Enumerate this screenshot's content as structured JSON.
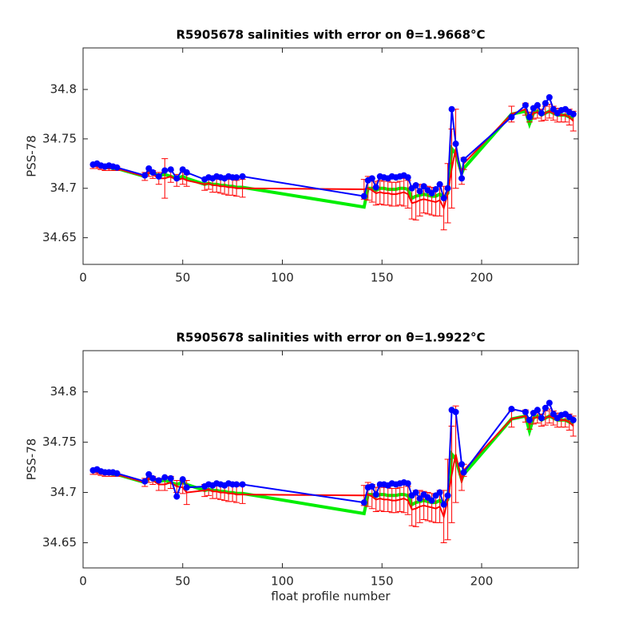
{
  "chart_data": [
    {
      "type": "errorbar",
      "title": "R5905678 salinities with error on θ=1.9668°C",
      "ylabel": "PSS-78",
      "x": [
        5,
        7,
        9,
        11,
        13,
        15,
        17,
        31,
        33,
        35,
        38,
        41,
        44,
        47,
        50,
        52,
        61,
        63,
        65,
        67,
        69,
        71,
        73,
        75,
        77,
        80,
        141,
        143,
        145,
        147,
        149,
        151,
        153,
        155,
        157,
        159,
        161,
        163,
        165,
        167,
        169,
        171,
        173,
        175,
        177,
        179,
        181,
        183,
        185,
        187,
        190,
        191,
        215,
        222,
        224,
        226,
        228,
        230,
        232,
        234,
        236,
        238,
        240,
        242,
        244,
        246
      ],
      "xlim": [
        0,
        248.5
      ],
      "xticks": [
        0,
        50,
        100,
        150,
        200
      ],
      "ylim": [
        34.623,
        34.842
      ],
      "yticks": [
        34.65,
        34.7,
        34.75,
        34.8
      ],
      "series": [
        {
          "color": "#00ee00",
          "values": [
            34.725,
            34.724,
            34.723,
            34.722,
            34.721,
            34.72,
            34.72,
            34.712,
            34.716,
            34.715,
            34.713,
            34.714,
            34.712,
            34.71,
            34.712,
            34.71,
            34.704,
            34.705,
            34.704,
            34.704,
            34.703,
            34.703,
            34.702,
            34.702,
            34.701,
            34.701,
            34.681,
            34.7,
            34.7,
            34.698,
            34.7,
            34.7,
            34.699,
            34.699,
            34.699,
            34.7,
            34.7,
            34.699,
            34.69,
            34.692,
            34.693,
            34.694,
            34.693,
            34.692,
            34.692,
            34.694,
            34.69,
            34.695,
            34.74,
            34.735,
            34.715,
            34.72,
            34.775,
            34.778,
            34.765,
            34.776,
            34.778,
            34.774,
            34.776,
            34.778,
            34.776,
            34.774,
            34.774,
            34.774,
            34.772,
            34.77
          ]
        },
        {
          "color": "#ff0000",
          "values": [
            34.722,
            34.722,
            34.721,
            34.72,
            34.72,
            34.72,
            34.72,
            34.712,
            34.716,
            34.714,
            34.71,
            34.71,
            34.712,
            34.708,
            34.71,
            34.708,
            34.704,
            34.705,
            34.703,
            34.703,
            34.702,
            34.702,
            34.701,
            34.701,
            34.7,
            34.7,
            34.699,
            34.7,
            34.698,
            34.695,
            34.696,
            34.695,
            34.695,
            34.694,
            34.694,
            34.695,
            34.696,
            34.694,
            34.685,
            34.686,
            34.688,
            34.689,
            34.688,
            34.687,
            34.686,
            34.688,
            34.68,
            34.695,
            34.72,
            34.74,
            34.712,
            34.725,
            34.775,
            34.78,
            34.772,
            34.776,
            34.777,
            34.774,
            34.776,
            34.778,
            34.776,
            34.774,
            34.774,
            34.774,
            34.772,
            34.768
          ],
          "errors": [
            0.002,
            0.002,
            0.002,
            0.002,
            0.002,
            0.002,
            0.002,
            0.004,
            0.004,
            0.004,
            0.006,
            0.02,
            0.006,
            0.006,
            0.006,
            0.006,
            0.006,
            0.006,
            0.007,
            0.007,
            0.007,
            0.008,
            0.008,
            0.008,
            0.008,
            0.009,
            0.01,
            0.012,
            0.012,
            0.012,
            0.012,
            0.012,
            0.012,
            0.012,
            0.012,
            0.012,
            0.014,
            0.014,
            0.016,
            0.018,
            0.016,
            0.014,
            0.014,
            0.014,
            0.014,
            0.016,
            0.022,
            0.03,
            0.04,
            0.04,
            0.008,
            0.006,
            0.008,
            0.006,
            0.005,
            0.006,
            0.006,
            0.006,
            0.007,
            0.007,
            0.007,
            0.007,
            0.007,
            0.007,
            0.008,
            0.01
          ]
        },
        {
          "color": "#0000ff",
          "values": [
            34.724,
            34.725,
            34.723,
            34.722,
            34.723,
            34.722,
            34.721,
            34.713,
            34.72,
            34.716,
            34.712,
            34.718,
            34.719,
            34.71,
            34.719,
            34.716,
            34.709,
            34.711,
            34.71,
            34.712,
            34.711,
            34.71,
            34.712,
            34.711,
            34.711,
            34.712,
            34.692,
            34.708,
            34.71,
            34.701,
            34.712,
            34.711,
            34.71,
            34.712,
            34.711,
            34.712,
            34.713,
            34.711,
            34.7,
            34.703,
            34.697,
            34.702,
            34.698,
            34.695,
            34.699,
            34.704,
            34.69,
            34.7,
            34.78,
            34.745,
            34.71,
            34.729,
            34.772,
            34.784,
            34.772,
            34.781,
            34.784,
            34.776,
            34.786,
            34.792,
            34.78,
            34.776,
            34.779,
            34.78,
            34.777,
            34.775
          ]
        }
      ]
    },
    {
      "type": "errorbar",
      "title": "R5905678 salinities with error on θ=1.9922°C",
      "ylabel": "PSS-78",
      "xlabel": "float profile number",
      "x": [
        5,
        7,
        9,
        11,
        13,
        15,
        17,
        31,
        33,
        35,
        38,
        41,
        44,
        47,
        50,
        52,
        61,
        63,
        65,
        67,
        69,
        71,
        73,
        75,
        77,
        80,
        141,
        143,
        145,
        147,
        149,
        151,
        153,
        155,
        157,
        159,
        161,
        163,
        165,
        167,
        169,
        171,
        173,
        175,
        177,
        179,
        181,
        183,
        185,
        187,
        190,
        191,
        215,
        222,
        224,
        226,
        228,
        230,
        232,
        234,
        236,
        238,
        240,
        242,
        244,
        246
      ],
      "xlim": [
        0,
        248.5
      ],
      "xticks": [
        0,
        50,
        100,
        150,
        200
      ],
      "ylim": [
        34.625,
        34.841
      ],
      "yticks": [
        34.65,
        34.7,
        34.75,
        34.8
      ],
      "series": [
        {
          "color": "#00ee00",
          "values": [
            34.723,
            34.722,
            34.721,
            34.72,
            34.719,
            34.718,
            34.718,
            34.71,
            34.714,
            34.713,
            34.711,
            34.712,
            34.71,
            34.708,
            34.71,
            34.708,
            34.702,
            34.703,
            34.702,
            34.702,
            34.701,
            34.701,
            34.7,
            34.7,
            34.699,
            34.699,
            34.679,
            34.698,
            34.698,
            34.696,
            34.698,
            34.698,
            34.697,
            34.697,
            34.697,
            34.698,
            34.698,
            34.697,
            34.688,
            34.69,
            34.691,
            34.692,
            34.691,
            34.69,
            34.69,
            34.692,
            34.688,
            34.693,
            34.738,
            34.733,
            34.713,
            34.718,
            34.773,
            34.776,
            34.761,
            34.774,
            34.776,
            34.772,
            34.774,
            34.776,
            34.774,
            34.772,
            34.772,
            34.772,
            34.77,
            34.768
          ]
        },
        {
          "color": "#ff0000",
          "values": [
            34.72,
            34.72,
            34.719,
            34.718,
            34.718,
            34.718,
            34.718,
            34.71,
            34.714,
            34.712,
            34.708,
            34.708,
            34.71,
            34.706,
            34.705,
            34.7,
            34.702,
            34.703,
            34.701,
            34.701,
            34.7,
            34.7,
            34.699,
            34.699,
            34.698,
            34.698,
            34.697,
            34.698,
            34.696,
            34.693,
            34.694,
            34.693,
            34.693,
            34.692,
            34.692,
            34.693,
            34.694,
            34.692,
            34.683,
            34.684,
            34.686,
            34.687,
            34.686,
            34.685,
            34.684,
            34.686,
            34.676,
            34.693,
            34.718,
            34.738,
            34.71,
            34.722,
            34.773,
            34.776,
            34.768,
            34.774,
            34.775,
            34.772,
            34.774,
            34.776,
            34.774,
            34.772,
            34.772,
            34.772,
            34.77,
            34.766
          ],
          "errors": [
            0.002,
            0.002,
            0.002,
            0.002,
            0.002,
            0.002,
            0.002,
            0.004,
            0.004,
            0.004,
            0.006,
            0.006,
            0.006,
            0.006,
            0.006,
            0.012,
            0.006,
            0.006,
            0.007,
            0.007,
            0.007,
            0.008,
            0.008,
            0.008,
            0.008,
            0.009,
            0.01,
            0.012,
            0.012,
            0.012,
            0.012,
            0.012,
            0.012,
            0.012,
            0.012,
            0.012,
            0.014,
            0.014,
            0.016,
            0.018,
            0.016,
            0.014,
            0.014,
            0.014,
            0.014,
            0.016,
            0.026,
            0.04,
            0.048,
            0.048,
            0.008,
            0.006,
            0.008,
            0.006,
            0.005,
            0.006,
            0.006,
            0.006,
            0.007,
            0.007,
            0.007,
            0.007,
            0.007,
            0.007,
            0.008,
            0.01
          ]
        },
        {
          "color": "#0000ff",
          "values": [
            34.722,
            34.723,
            34.721,
            34.72,
            34.72,
            34.72,
            34.719,
            34.711,
            34.718,
            34.714,
            34.712,
            34.715,
            34.714,
            34.696,
            34.713,
            34.705,
            34.706,
            34.708,
            34.707,
            34.709,
            34.708,
            34.707,
            34.709,
            34.708,
            34.708,
            34.708,
            34.69,
            34.705,
            34.706,
            34.698,
            34.708,
            34.708,
            34.707,
            34.709,
            34.708,
            34.709,
            34.71,
            34.709,
            34.697,
            34.7,
            34.694,
            34.698,
            34.695,
            34.692,
            34.697,
            34.7,
            34.688,
            34.697,
            34.782,
            34.78,
            34.728,
            34.72,
            34.783,
            34.78,
            34.772,
            34.779,
            34.782,
            34.774,
            34.784,
            34.789,
            34.778,
            34.774,
            34.777,
            34.778,
            34.775,
            34.772
          ]
        }
      ]
    }
  ]
}
